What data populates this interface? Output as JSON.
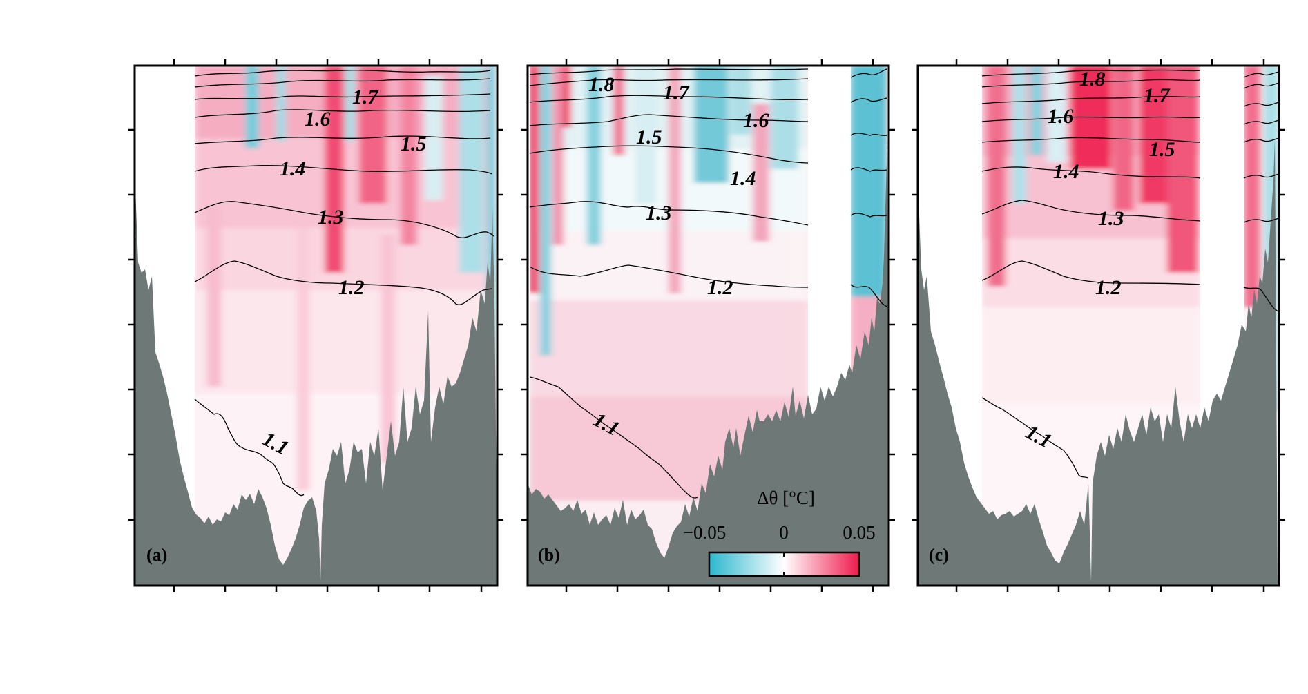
{
  "chart_data": [
    {
      "type": "heatmap",
      "panel_label": "(a)",
      "contour_labels": [
        "1.1",
        "1.2",
        "1.3",
        "1.4",
        "1.5",
        "1.6",
        "1.7"
      ],
      "contour_levels": [
        1.1,
        1.2,
        1.3,
        1.4,
        1.5,
        1.6,
        1.7
      ],
      "anomaly_sign": "mostly positive",
      "grid": false
    },
    {
      "type": "heatmap",
      "panel_label": "(b)",
      "contour_labels": [
        "1.1",
        "1.2",
        "1.3",
        "1.4",
        "1.5",
        "1.6",
        "1.7",
        "1.8"
      ],
      "contour_levels": [
        1.1,
        1.2,
        1.3,
        1.4,
        1.5,
        1.6,
        1.7,
        1.8
      ],
      "anomaly_sign": "mixed",
      "grid": false
    },
    {
      "type": "heatmap",
      "panel_label": "(c)",
      "contour_labels": [
        "1.1",
        "1.2",
        "1.3",
        "1.4",
        "1.5",
        "1.6",
        "1.7",
        "1.8"
      ],
      "contour_levels": [
        1.1,
        1.2,
        1.3,
        1.4,
        1.5,
        1.6,
        1.7,
        1.8
      ],
      "anomaly_sign": "strongly positive",
      "grid": false
    }
  ],
  "colorbar": {
    "title": "Δθ [°C]",
    "min_label": "−0.05",
    "mid_label": "0",
    "max_label": "0.05",
    "range": [
      -0.05,
      0.05
    ],
    "colors": [
      "#2cb8cf",
      "#ffffff",
      "#ef1a4c"
    ]
  },
  "colors": {
    "topography": "#6d7877",
    "contour": "#000000",
    "warm": "#ef1a4c",
    "cold": "#2cb8cf"
  }
}
